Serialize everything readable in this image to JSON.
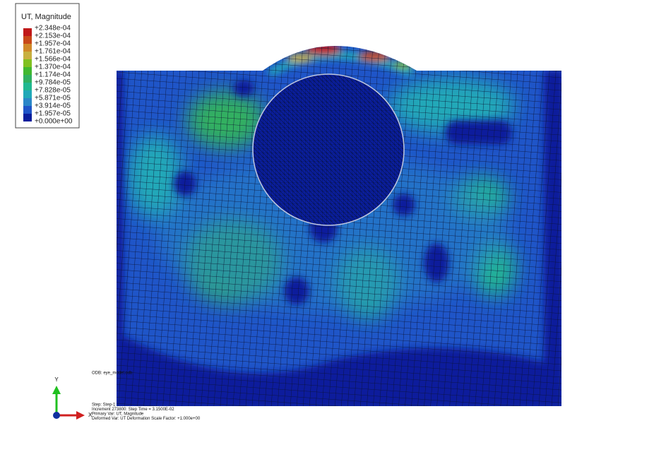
{
  "legend": {
    "title": "UT, Magnitude",
    "labels": [
      "+2.348e-04",
      "+2.153e-04",
      "+1.957e-04",
      "+1.761e-04",
      "+1.566e-04",
      "+1.370e-04",
      "+1.174e-04",
      "+9.784e-05",
      "+7.828e-05",
      "+5.871e-05",
      "+3.914e-05",
      "+1.957e-05",
      "+0.000e+00"
    ],
    "colors": [
      "#c01818",
      "#c84818",
      "#d08828",
      "#c8b040",
      "#80c020",
      "#40b830",
      "#30b060",
      "#20b890",
      "#20a8b8",
      "#2a86c8",
      "#1f55c8",
      "#0a1e9c"
    ]
  },
  "odb_line": "ODB: eye_model.odb",
  "info": [
    "Step: Step-1",
    "Increment    273800: Step Time =    3.1500E-02",
    "Primary Var: UT, Magnitude",
    "Deformed Var: UT   Deformation Scale Factor: +1.000e+00"
  ],
  "triad": {
    "y": "Y",
    "x": "X"
  }
}
